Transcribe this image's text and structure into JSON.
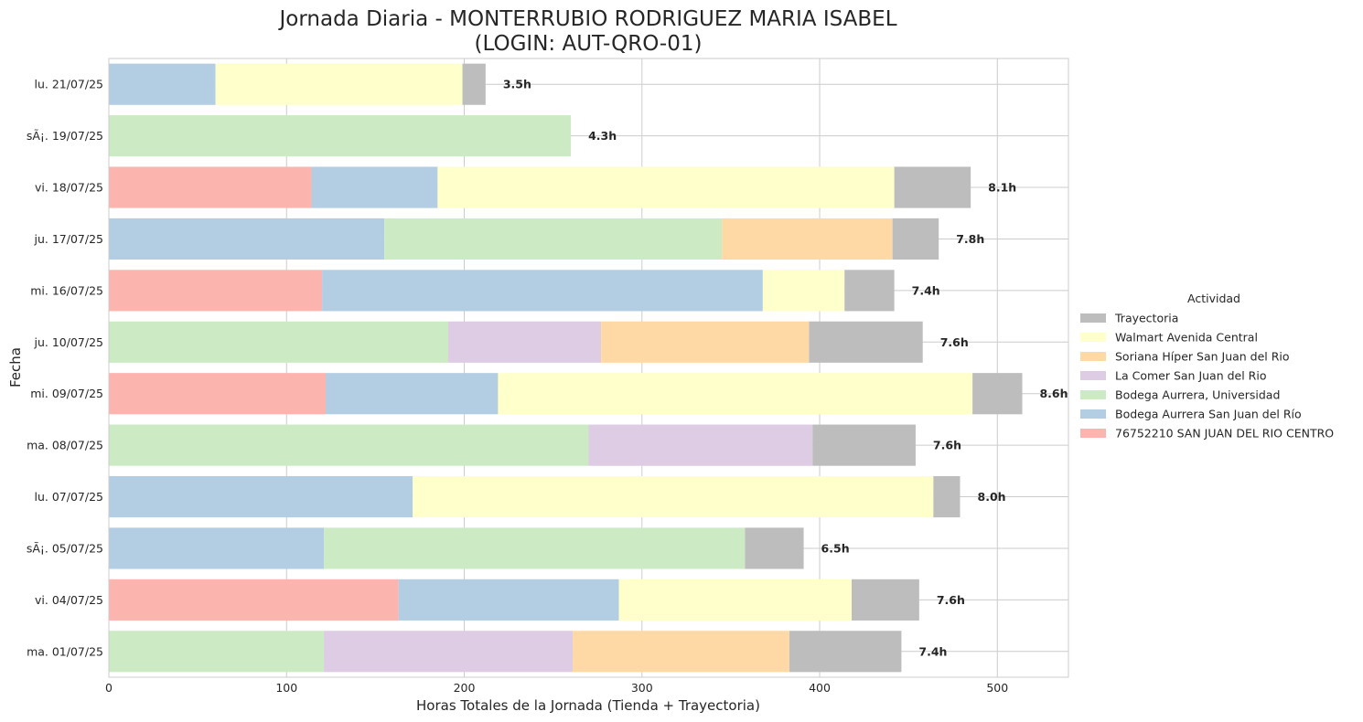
{
  "chart_data": {
    "type": "bar",
    "orientation": "horizontal",
    "stacked": true,
    "title_lines": [
      "Jornada Diaria - MONTERRUBIO RODRIGUEZ MARIA ISABEL",
      "(LOGIN: AUT-QRO-01)"
    ],
    "xlabel": "Horas Totales de la Jornada (Tienda + Trayectoria)",
    "ylabel": "Fecha",
    "xlim": [
      0,
      540
    ],
    "xticks": [
      0,
      100,
      200,
      300,
      400,
      500
    ],
    "grid": true,
    "legend": {
      "title": "Actividad",
      "placement": "right",
      "entries": [
        "Trayectoria",
        "Walmart Avenida Central",
        "Soriana Híper San Juan del Rio",
        "La Comer San Juan del Rio",
        "Bodega Aurrera, Universidad",
        "Bodega Aurrera San Juan del Río",
        "76752210 SAN JUAN DEL RIO CENTRO"
      ]
    },
    "categories": [
      "lu. 21/07/25",
      "sÃ¡. 19/07/25",
      "vi. 18/07/25",
      "ju. 17/07/25",
      "mi. 16/07/25",
      "ju. 10/07/25",
      "mi. 09/07/25",
      "ma. 08/07/25",
      "lu. 07/07/25",
      "sÃ¡. 05/07/25",
      "vi. 04/07/25",
      "ma. 01/07/25"
    ],
    "totals": [
      "3.5h",
      "4.3h",
      "8.1h",
      "7.8h",
      "7.4h",
      "7.6h",
      "8.6h",
      "7.6h",
      "8.0h",
      "6.5h",
      "7.6h",
      "7.4h"
    ],
    "series": [
      {
        "name": "76752210 SAN JUAN DEL RIO CENTRO",
        "color": "#fbb4ae",
        "values": [
          0,
          0,
          114,
          0,
          120,
          0,
          122,
          0,
          0,
          0,
          163,
          0
        ]
      },
      {
        "name": "Bodega Aurrera San Juan del Río",
        "color": "#b3cde3",
        "values": [
          60,
          0,
          71,
          155,
          248,
          0,
          97,
          0,
          171,
          121,
          124,
          0
        ]
      },
      {
        "name": "Bodega Aurrera, Universidad",
        "color": "#ccebc5",
        "values": [
          0,
          260,
          0,
          190,
          0,
          191,
          0,
          270,
          0,
          237,
          0,
          121
        ]
      },
      {
        "name": "La Comer San Juan del Rio",
        "color": "#decbe4",
        "values": [
          0,
          0,
          0,
          0,
          0,
          86,
          0,
          126,
          0,
          0,
          0,
          140
        ]
      },
      {
        "name": "Soriana Híper San Juan del Rio",
        "color": "#fed9a6",
        "values": [
          0,
          0,
          0,
          96,
          0,
          117,
          0,
          0,
          0,
          0,
          0,
          122
        ]
      },
      {
        "name": "Walmart Avenida Central",
        "color": "#ffffcc",
        "values": [
          139,
          0,
          257,
          0,
          46,
          0,
          267,
          0,
          293,
          0,
          131,
          0
        ]
      },
      {
        "name": "Trayectoria",
        "color": "#bdbdbd",
        "values": [
          13,
          0,
          43,
          26,
          28,
          64,
          28,
          58,
          15,
          33,
          38,
          63
        ]
      }
    ]
  }
}
